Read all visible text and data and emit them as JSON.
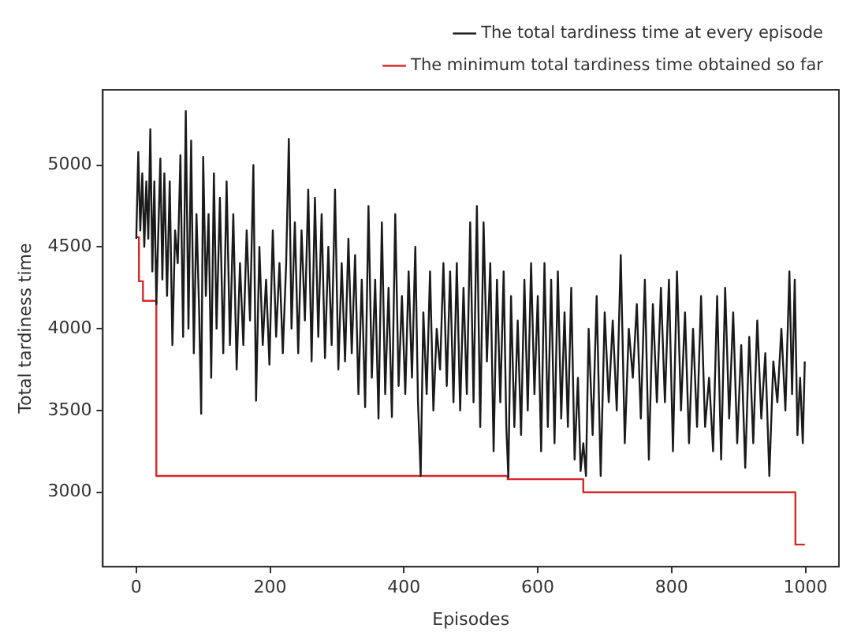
{
  "chart_data": {
    "type": "line",
    "xlabel": "Episodes",
    "ylabel": "Total tardiness time",
    "xlim": [
      -50,
      1050
    ],
    "xticks": [
      0,
      200,
      400,
      600,
      800,
      1000
    ],
    "ylim": [
      2545,
      5460
    ],
    "yticks": [
      3000,
      3500,
      4000,
      4500,
      5000
    ],
    "grid": false,
    "legend": "top right",
    "marker": "none",
    "line_style": "solid",
    "series": [
      {
        "name": "The total tardiness time at every episode",
        "color": "#1a1a1a",
        "type": "line",
        "x": [
          0,
          3,
          6,
          9,
          12,
          15,
          18,
          21,
          24,
          27,
          30,
          33,
          36,
          39,
          42,
          46,
          50,
          54,
          58,
          62,
          66,
          70,
          74,
          78,
          82,
          86,
          90,
          94,
          97,
          100,
          104,
          108,
          112,
          116,
          120,
          125,
          130,
          135,
          140,
          145,
          150,
          155,
          160,
          165,
          170,
          175,
          179,
          184,
          189,
          194,
          199,
          204,
          209,
          214,
          219,
          224,
          228,
          232,
          237,
          242,
          247,
          252,
          257,
          262,
          267,
          272,
          277,
          282,
          287,
          292,
          297,
          302,
          307,
          312,
          317,
          322,
          327,
          332,
          337,
          342,
          347,
          352,
          357,
          362,
          367,
          372,
          377,
          382,
          387,
          392,
          397,
          402,
          407,
          412,
          417,
          421,
          425,
          429,
          434,
          439,
          444,
          449,
          454,
          459,
          464,
          469,
          474,
          479,
          484,
          489,
          494,
          499,
          504,
          509,
          514,
          519,
          524,
          529,
          534,
          539,
          544,
          549,
          553,
          556,
          560,
          565,
          570,
          575,
          580,
          585,
          590,
          595,
          600,
          605,
          610,
          615,
          620,
          625,
          630,
          635,
          640,
          645,
          650,
          655,
          660,
          664,
          668,
          672,
          676,
          682,
          688,
          694,
          700,
          706,
          712,
          718,
          724,
          730,
          736,
          742,
          748,
          754,
          760,
          766,
          772,
          778,
          784,
          790,
          796,
          802,
          808,
          814,
          820,
          826,
          832,
          838,
          844,
          850,
          856,
          862,
          868,
          874,
          880,
          886,
          892,
          898,
          904,
          910,
          916,
          922,
          928,
          934,
          940,
          946,
          952,
          958,
          964,
          970,
          976,
          980,
          984,
          988,
          992,
          996,
          999
        ],
        "values": [
          4550,
          5080,
          4600,
          4950,
          4500,
          4900,
          4550,
          5220,
          4350,
          4900,
          4150,
          4600,
          5040,
          4300,
          4950,
          4200,
          4900,
          3900,
          4600,
          4400,
          5060,
          3950,
          5330,
          4000,
          5150,
          3850,
          4700,
          4100,
          3480,
          5050,
          4200,
          4700,
          3700,
          4950,
          4000,
          4800,
          3850,
          4900,
          3900,
          4700,
          3750,
          4400,
          3900,
          4600,
          4050,
          5000,
          3560,
          4500,
          3900,
          4300,
          3780,
          4600,
          3950,
          4400,
          3850,
          4400,
          5160,
          4000,
          4650,
          3850,
          4600,
          4050,
          4850,
          3800,
          4800,
          3950,
          4700,
          3820,
          4500,
          3900,
          4850,
          3750,
          4400,
          3800,
          4550,
          3850,
          4450,
          3600,
          4300,
          3520,
          4750,
          3700,
          4300,
          3450,
          4650,
          3600,
          4250,
          3460,
          4700,
          3650,
          4200,
          3600,
          4350,
          3700,
          4500,
          3550,
          3100,
          4100,
          3600,
          4350,
          3500,
          4000,
          3750,
          4400,
          3650,
          4350,
          3550,
          4400,
          3500,
          4250,
          3600,
          4650,
          3550,
          4750,
          3400,
          4650,
          3800,
          4400,
          3250,
          4300,
          3550,
          4350,
          3400,
          3090,
          4200,
          3400,
          4050,
          3350,
          4300,
          3500,
          4400,
          3600,
          4200,
          3250,
          4400,
          3400,
          4300,
          3300,
          4350,
          3450,
          4100,
          3400,
          4250,
          3200,
          3700,
          3130,
          3300,
          3100,
          4000,
          3350,
          4200,
          3100,
          4100,
          3550,
          4050,
          3500,
          4450,
          3300,
          4000,
          3700,
          4150,
          3450,
          4300,
          3200,
          4150,
          3550,
          4250,
          3550,
          4300,
          3250,
          4350,
          3500,
          4100,
          3300,
          4000,
          3400,
          4200,
          3400,
          3700,
          3250,
          4200,
          3200,
          4250,
          3450,
          4100,
          3300,
          3900,
          3150,
          3950,
          3300,
          4050,
          3450,
          3850,
          3100,
          3800,
          3550,
          4000,
          3500,
          4350,
          3600,
          4300,
          3350,
          3700,
          3300,
          3800
        ]
      },
      {
        "name": "The minimum total tardiness time obtained so far",
        "color": "#d62728",
        "type": "step",
        "x": [
          0,
          4,
          10,
          30,
          555,
          668,
          985,
          999
        ],
        "values": [
          4560,
          4290,
          4170,
          3100,
          3080,
          3000,
          2680,
          2680
        ]
      }
    ]
  }
}
